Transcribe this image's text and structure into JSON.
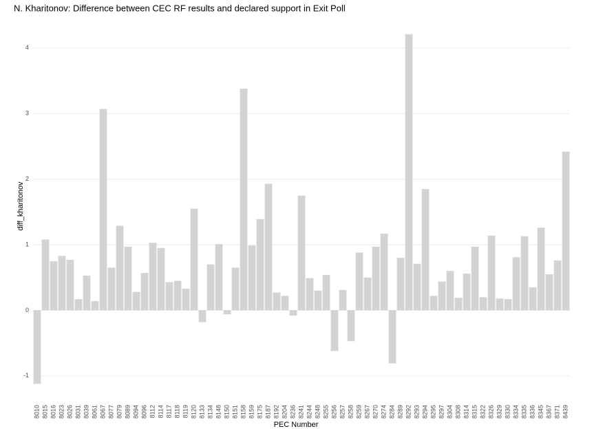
{
  "chart_data": {
    "type": "bar",
    "title": "N. Kharitonov: Difference between CEC RF results and declared support in Exit Poll",
    "x_label": "PEC Number",
    "y_label": "diff_kharitonov",
    "categories": [
      "8010",
      "8015",
      "8016",
      "8023",
      "8026",
      "8031",
      "8039",
      "8061",
      "8067",
      "8077",
      "8079",
      "8089",
      "8094",
      "8096",
      "8112",
      "8114",
      "8117",
      "8118",
      "8119",
      "8120",
      "8133",
      "8134",
      "8148",
      "8150",
      "8151",
      "8158",
      "8159",
      "8175",
      "8187",
      "8192",
      "8204",
      "8236",
      "8241",
      "8244",
      "8248",
      "8255",
      "8256",
      "8257",
      "8258",
      "8259",
      "8267",
      "8270",
      "8274",
      "8284",
      "8289",
      "8292",
      "8293",
      "8294",
      "8295",
      "8297",
      "8304",
      "8308",
      "8314",
      "8315",
      "8322",
      "8326",
      "8329",
      "8330",
      "8334",
      "8335",
      "8336",
      "8345",
      "8367",
      "8371",
      "8439"
    ],
    "values": [
      -1.12,
      1.08,
      0.75,
      0.83,
      0.77,
      0.17,
      0.53,
      0.14,
      3.07,
      0.65,
      1.29,
      0.97,
      0.28,
      0.57,
      1.03,
      0.95,
      0.43,
      0.45,
      0.33,
      1.55,
      -0.18,
      0.7,
      1.01,
      -0.06,
      0.65,
      3.38,
      0.99,
      1.39,
      1.93,
      0.27,
      0.22,
      -0.08,
      1.75,
      0.49,
      0.3,
      0.54,
      -0.62,
      0.31,
      -0.47,
      0.88,
      0.5,
      0.97,
      1.17,
      -0.81,
      0.8,
      4.21,
      0.71,
      1.85,
      0.22,
      0.44,
      0.6,
      0.19,
      0.56,
      0.97,
      0.2,
      1.14,
      0.18,
      0.17,
      0.81,
      1.13,
      0.35,
      1.26,
      0.55,
      0.76,
      2.42
    ],
    "color": "#d3d3d3",
    "ylim": [
      -1.4,
      4.47
    ],
    "yticks": [
      -1,
      0,
      1,
      2,
      3,
      4
    ],
    "grid": true
  }
}
